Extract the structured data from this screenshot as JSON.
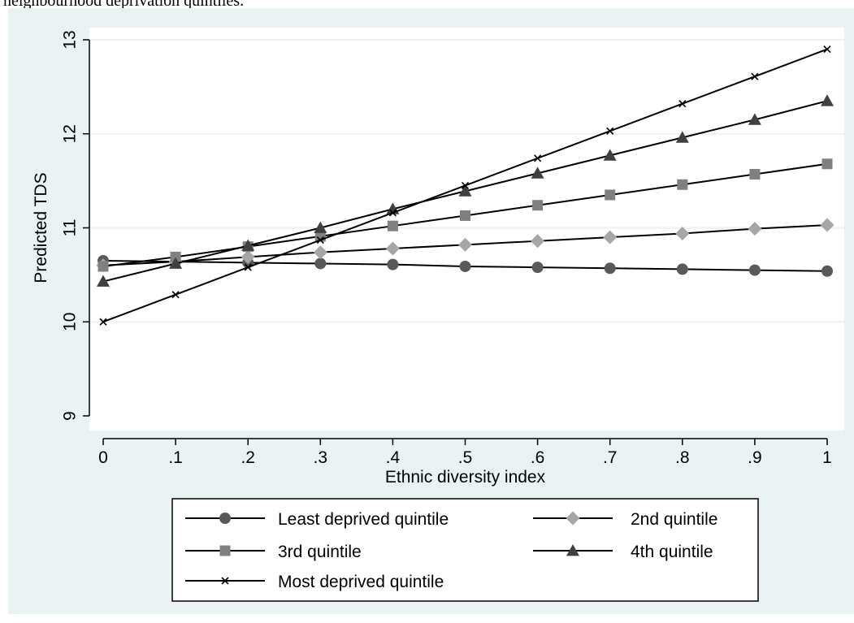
{
  "caption": "neighbourhood deprivation quintiles.",
  "colors": {
    "background_outer": "#eaf2f3",
    "plot_bg": "#ffffff",
    "gridline": "#eaf2f3",
    "line": "#000000",
    "least": "#595959",
    "second": "#a6a6a6",
    "third": "#808080",
    "fourth": "#404040",
    "most": "#000000"
  },
  "chart_data": {
    "type": "line",
    "title": "",
    "xlabel": "Ethnic diversity index",
    "ylabel": "Predicted TDS",
    "xlim": [
      0,
      1
    ],
    "ylim": [
      9,
      13
    ],
    "x": [
      0,
      0.1,
      0.2,
      0.3,
      0.4,
      0.5,
      0.6,
      0.7,
      0.8,
      0.9,
      1
    ],
    "x_tick_labels": [
      "0",
      ".1",
      ".2",
      ".3",
      ".4",
      ".5",
      ".6",
      ".7",
      ".8",
      ".9",
      "1"
    ],
    "y_ticks": [
      9,
      10,
      11,
      12,
      13
    ],
    "y_tick_labels": [
      "9",
      "10",
      "11",
      "12",
      "13"
    ],
    "grid": true,
    "legend_position": "bottom",
    "series": [
      {
        "name": "Least deprived quintile",
        "marker": "circle",
        "values": [
          10.65,
          10.64,
          10.63,
          10.62,
          10.61,
          10.59,
          10.58,
          10.57,
          10.56,
          10.55,
          10.54
        ]
      },
      {
        "name": "2nd quintile",
        "marker": "diamond",
        "values": [
          10.6,
          10.64,
          10.69,
          10.74,
          10.78,
          10.82,
          10.86,
          10.9,
          10.94,
          10.99,
          11.03
        ]
      },
      {
        "name": "3rd quintile",
        "marker": "square",
        "values": [
          10.59,
          10.69,
          10.8,
          10.91,
          11.02,
          11.13,
          11.24,
          11.35,
          11.46,
          11.57,
          11.68
        ]
      },
      {
        "name": "4th quintile",
        "marker": "triangle",
        "values": [
          10.43,
          10.62,
          10.81,
          11.0,
          11.2,
          11.39,
          11.58,
          11.77,
          11.96,
          12.15,
          12.35
        ]
      },
      {
        "name": "Most deprived quintile",
        "marker": "x",
        "values": [
          10.0,
          10.29,
          10.58,
          10.87,
          11.16,
          11.45,
          11.74,
          12.03,
          12.32,
          12.61,
          12.9
        ]
      }
    ]
  }
}
